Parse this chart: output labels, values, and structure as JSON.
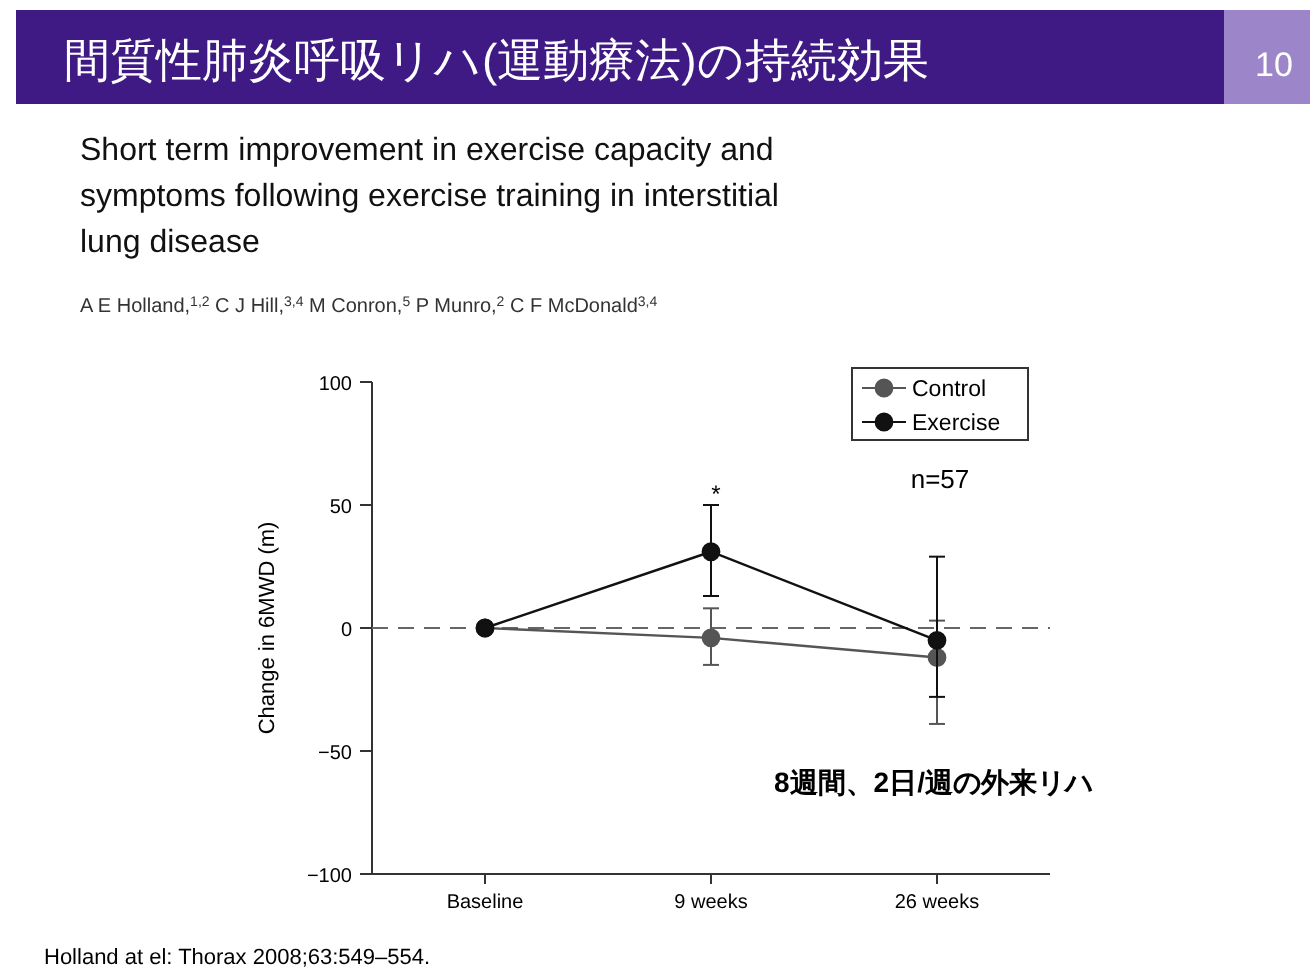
{
  "chart_data": {
    "type": "line",
    "title": "間質性肺炎呼吸リハ(運動療法)の持続効果",
    "subtitle": "Short term improvement in exercise capacity and symptoms following exercise training in interstitial lung disease",
    "ylabel": "Change in 6MWD (m)",
    "categories": [
      "Baseline",
      "9 weeks",
      "26 weeks"
    ],
    "series": [
      {
        "name": "Control",
        "color": "#555555",
        "values": [
          0,
          -4,
          -12
        ],
        "errors": [
          null,
          [
            -15,
            8
          ],
          [
            -39,
            3
          ]
        ]
      },
      {
        "name": "Exercise",
        "color": "#111111",
        "values": [
          0,
          31,
          -5
        ],
        "errors": [
          null,
          [
            13,
            50
          ],
          [
            -28,
            29
          ]
        ]
      }
    ],
    "ylim": [
      -100,
      100
    ],
    "yticks": [
      {
        "value": -100,
        "label": "−100"
      },
      {
        "value": -50,
        "label": "−50"
      },
      0,
      50,
      100
    ],
    "ref_lines": [
      {
        "axis": "y",
        "value": 0,
        "color": "#666666",
        "line_style": "dashed"
      }
    ],
    "marker": "circle",
    "grid": false,
    "legend": "top right",
    "annotations": [
      "10",
      "*",
      "n=57",
      "8週間、2日/週の外来リハ",
      "A E Holland,$^{1,2}$ C J Hill,$^{3,4}$ M Conron,$^{5}$ P Munro,$^{2}$ C F McDonald$^{3,4}$",
      "Holland at el: Thorax 2008;63:549–554."
    ]
  }
}
